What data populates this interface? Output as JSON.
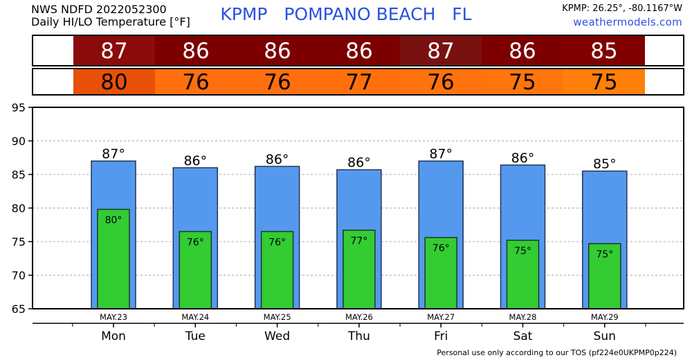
{
  "header": {
    "line1": "NWS NDFD 2022052300",
    "line2": "Daily HI/LO Temperature [°F]",
    "title": "KPMP   POMPANO BEACH   FL",
    "coords": "KPMP: 26.25°, -80.1167°W",
    "site": "weathermodels.com"
  },
  "footer": "Personal use only according to our TOS (pf224e0UKPMP0p224)",
  "colors": {
    "hi_bar": "#5599ee",
    "lo_bar": "#33cc33",
    "hi_cells": [
      "#8b0a0a",
      "#7c0000",
      "#7c0000",
      "#7c0000",
      "#7a1111",
      "#7c0000",
      "#800000"
    ],
    "lo_cells": [
      "#e85008",
      "#ff6f0f",
      "#ff6f0f",
      "#ff700c",
      "#ff720d",
      "#ff750c",
      "#ff7f0a"
    ]
  },
  "chart_data": {
    "type": "bar",
    "ylim": [
      65,
      95
    ],
    "yticks": [
      "65",
      "70",
      "75",
      "80",
      "85",
      "90",
      "95"
    ],
    "grid": true,
    "dates": [
      "MAY.23",
      "MAY.24",
      "MAY.25",
      "MAY.26",
      "MAY.27",
      "MAY.28",
      "MAY.29"
    ],
    "categories": [
      "Mon",
      "Tue",
      "Wed",
      "Thu",
      "Fri",
      "Sat",
      "Sun"
    ],
    "series": [
      {
        "values": [
          87,
          86,
          86.2,
          85.7,
          87,
          86.4,
          85.5
        ]
      },
      {
        "values": [
          79.8,
          76.5,
          76.5,
          76.7,
          75.6,
          75.2,
          74.7
        ]
      }
    ],
    "hi_labels": [
      "87°",
      "86°",
      "86°",
      "86°",
      "87°",
      "86°",
      "85°"
    ],
    "lo_labels": [
      "80°",
      "76°",
      "76°",
      "77°",
      "76°",
      "75°",
      "75°"
    ],
    "hi_table": [
      "87",
      "86",
      "86",
      "86",
      "87",
      "86",
      "85"
    ],
    "lo_table": [
      "80",
      "76",
      "76",
      "77",
      "76",
      "75",
      "75"
    ]
  }
}
